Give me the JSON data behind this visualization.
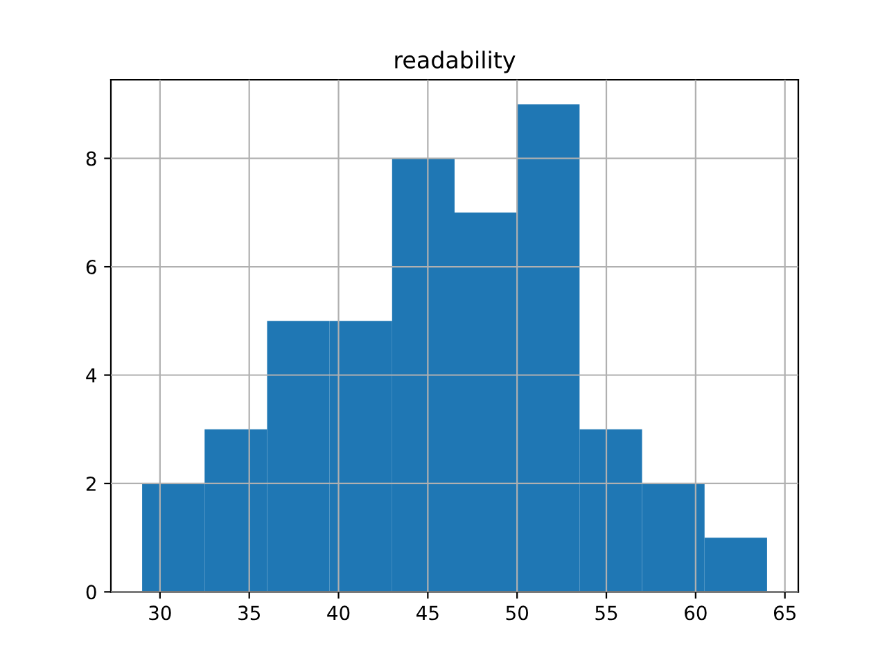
{
  "chart_data": {
    "type": "histogram",
    "title": "readability",
    "bins": [
      29,
      32.5,
      36,
      39.5,
      43,
      46.5,
      50,
      53.5,
      57,
      60.5,
      64
    ],
    "values": [
      2,
      3,
      5,
      5,
      8,
      7,
      9,
      3,
      2,
      1
    ],
    "color": "#1f77b4",
    "xlim": [
      27.25,
      65.75
    ],
    "xticks": [
      30,
      35,
      40,
      45,
      50,
      55,
      60,
      65
    ],
    "ylim": [
      0,
      9.45
    ],
    "yticks": [
      0,
      2,
      4,
      6,
      8
    ],
    "grid": true
  }
}
